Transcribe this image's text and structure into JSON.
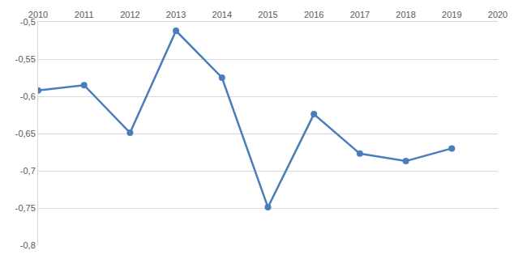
{
  "chart_data": {
    "type": "line",
    "x": [
      2010,
      2011,
      2012,
      2013,
      2014,
      2015,
      2016,
      2017,
      2018,
      2019
    ],
    "values": [
      -0.592,
      -0.585,
      -0.649,
      -0.512,
      -0.575,
      -0.749,
      -0.624,
      -0.677,
      -0.687,
      -0.67
    ],
    "color": "#4a7ebb",
    "marker": "circle",
    "xlim": [
      2010,
      2020
    ],
    "xticks": [
      2010,
      2011,
      2012,
      2013,
      2014,
      2015,
      2016,
      2017,
      2018,
      2019,
      2020
    ],
    "ylim": [
      -0.8,
      -0.5
    ],
    "yticks": [
      {
        "value": -0.5,
        "label": "-0,5"
      },
      {
        "value": -0.55,
        "label": "-0,55"
      },
      {
        "value": -0.6,
        "label": "-0,6"
      },
      {
        "value": -0.65,
        "label": "-0,65"
      },
      {
        "value": -0.7,
        "label": "-0,7"
      },
      {
        "value": -0.75,
        "label": "-0,75"
      },
      {
        "value": -0.8,
        "label": "-0,8"
      }
    ],
    "grid": true
  }
}
